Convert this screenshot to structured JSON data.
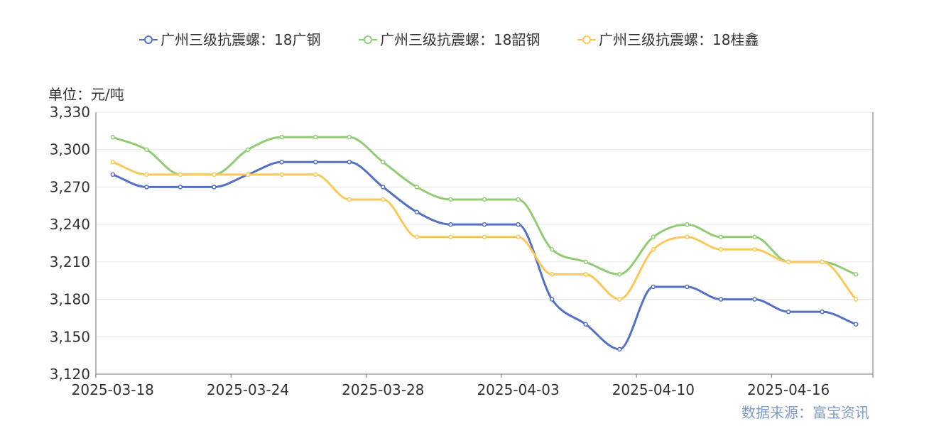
{
  "chart_data": {
    "type": "line",
    "unit_label": "单位：元/吨",
    "source": "数据来源：富宝资讯",
    "x": [
      "2025-03-18",
      "2025-03-19",
      "2025-03-20",
      "2025-03-21",
      "2025-03-24",
      "2025-03-25",
      "2025-03-26",
      "2025-03-27",
      "2025-03-28",
      "2025-03-31",
      "2025-04-01",
      "2025-04-02",
      "2025-04-03",
      "2025-04-07",
      "2025-04-08",
      "2025-04-09",
      "2025-04-10",
      "2025-04-11",
      "2025-04-14",
      "2025-04-15",
      "2025-04-16",
      "2025-04-17",
      "2025-04-18"
    ],
    "x_tick_labels": [
      "2025-03-18",
      "2025-03-24",
      "2025-03-28",
      "2025-04-03",
      "2025-04-10",
      "2025-04-16"
    ],
    "x_tick_indices": [
      0,
      4,
      8,
      12,
      16,
      20
    ],
    "ylim": [
      3120,
      3330
    ],
    "y_ticks": [
      3120,
      3150,
      3180,
      3210,
      3240,
      3270,
      3300,
      3330
    ],
    "y_tick_labels": [
      "3,120",
      "3,150",
      "3,180",
      "3,210",
      "3,240",
      "3,270",
      "3,300",
      "3,330"
    ],
    "grid": true,
    "legend_position": "top-center",
    "series": [
      {
        "name": "广州三级抗震螺：18广钢",
        "color": "#5470c6",
        "values": [
          3280,
          3270,
          3270,
          3270,
          3280,
          3290,
          3290,
          3290,
          3270,
          3250,
          3240,
          3240,
          3240,
          3180,
          3160,
          3140,
          3190,
          3190,
          3180,
          3180,
          3170,
          3170,
          3160
        ]
      },
      {
        "name": "广州三级抗震螺：18韶钢",
        "color": "#91cc75",
        "values": [
          3310,
          3300,
          3280,
          3280,
          3300,
          3310,
          3310,
          3310,
          3290,
          3270,
          3260,
          3260,
          3260,
          3220,
          3210,
          3200,
          3230,
          3240,
          3230,
          3230,
          3210,
          3210,
          3200
        ]
      },
      {
        "name": "广州三级抗震螺：18桂鑫",
        "color": "#fac858",
        "values": [
          3290,
          3280,
          3280,
          3280,
          3280,
          3280,
          3280,
          3260,
          3260,
          3230,
          3230,
          3230,
          3230,
          3200,
          3200,
          3180,
          3220,
          3230,
          3220,
          3220,
          3210,
          3210,
          3180
        ]
      }
    ]
  }
}
